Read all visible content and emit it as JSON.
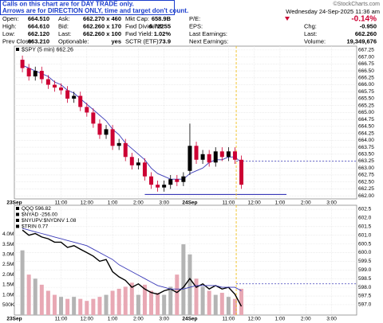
{
  "header": {
    "notice": [
      "Calls on this chart are for DAY TRADE only.",
      "Arrows are for DIRECTION ONLY, time and target don't count."
    ],
    "source": "©StockCharts.com",
    "datetime": "Wednesday 24-Sep-2025 11:36 am",
    "quote": [
      [
        [
          "Open:",
          "664.510"
        ],
        [
          "Ask:",
          "662.270 x 460"
        ],
        [
          "Mkt Cap:",
          "658.9B"
        ],
        [
          "P/E:"
        ],
        [
          "-0.14%"
        ]
      ],
      [
        [
          "High:",
          "664.610"
        ],
        [
          "Bid:",
          "662.260 x 170"
        ],
        [
          "Fwd Dividend:",
          "6.72255"
        ],
        [
          "EPS:"
        ],
        [
          "Chg:",
          "-0.950"
        ]
      ],
      [
        [
          "Low:",
          "662.120"
        ],
        [
          "Last:",
          "662.260 x 100"
        ],
        [
          "Fwd Yield:",
          "1.02%"
        ],
        [
          "Last Earnings:"
        ],
        [
          "Last:",
          "662.260"
        ]
      ],
      [
        [
          "Prev Close:",
          "663.210"
        ],
        [
          "Optionable:",
          "yes"
        ],
        [
          "SCTR (ETF):",
          "73.9"
        ],
        [
          "Next Earnings:"
        ],
        [
          "Volume:",
          "19,349,676"
        ]
      ]
    ]
  },
  "chart_data": [
    {
      "type": "candlestick",
      "legend": "$SPY (5 min) 662.26",
      "open": [
        666.9,
        666.6,
        666.3,
        666.5,
        666.2,
        666.0,
        665.9,
        665.8,
        665.5,
        665.6,
        665.2,
        665.0,
        664.6,
        664.2,
        664.4,
        663.8,
        663.9,
        663.4,
        663.1,
        663.2,
        662.7,
        662.4,
        662.3,
        662.4,
        662.6,
        662.5,
        662.9,
        663.8,
        663.3,
        663.5,
        663.2,
        663.6,
        663.4,
        663.6,
        663.3
      ],
      "high": [
        667.05,
        666.75,
        666.65,
        666.65,
        666.35,
        666.15,
        666.05,
        665.95,
        665.75,
        665.75,
        665.35,
        665.15,
        664.75,
        664.55,
        664.55,
        664.05,
        664.05,
        663.55,
        663.35,
        663.35,
        662.85,
        662.55,
        662.55,
        662.75,
        662.75,
        662.85,
        664.6,
        663.95,
        663.65,
        663.65,
        663.75,
        663.75,
        663.75,
        663.75,
        663.45
      ],
      "low": [
        666.45,
        666.15,
        666.15,
        666.05,
        665.85,
        665.75,
        665.65,
        665.35,
        665.35,
        665.05,
        664.85,
        664.45,
        664.05,
        664.05,
        663.65,
        663.65,
        663.25,
        662.95,
        662.95,
        662.55,
        662.25,
        662.15,
        662.15,
        662.25,
        662.35,
        662.35,
        662.75,
        663.15,
        663.15,
        663.05,
        663.05,
        663.25,
        663.25,
        663.15,
        662.25
      ],
      "close": [
        666.6,
        666.3,
        666.5,
        666.2,
        666.0,
        665.9,
        665.8,
        665.5,
        665.6,
        665.2,
        665.0,
        664.6,
        664.2,
        664.4,
        663.8,
        663.9,
        663.4,
        663.1,
        663.2,
        662.7,
        662.4,
        662.3,
        662.4,
        662.6,
        662.5,
        662.7,
        663.8,
        663.3,
        663.5,
        663.2,
        663.6,
        663.4,
        663.6,
        663.3,
        662.4
      ],
      "up_color": "#000000",
      "down_color": "#cc0033",
      "ma": {
        "color": "#3a3ab8",
        "values": [
          666.7,
          666.6,
          666.5,
          666.4,
          666.3,
          666.1,
          666.0,
          665.8,
          665.7,
          665.5,
          665.3,
          665.1,
          664.9,
          664.7,
          664.4,
          664.2,
          663.9,
          663.7,
          663.5,
          663.3,
          663.0,
          662.8,
          662.7,
          662.6,
          662.6,
          662.6,
          662.8,
          662.9,
          663.0,
          663.2,
          663.3,
          663.3,
          663.4,
          663.4,
          663.2
        ]
      },
      "hlines": [
        {
          "value": 663.25,
          "from": 33.2,
          "color": "#3a3ab8",
          "dash": true
        },
        {
          "value": 662.05,
          "from": 19,
          "to": 41,
          "color": "#3a3ab8",
          "dash": false
        }
      ],
      "vline": {
        "value": 33.2,
        "color": "#f0c020"
      },
      "xlim": [
        -1.25,
        51.9
      ],
      "xticks": [
        {
          "value": -1.25,
          "label": "23Sep"
        },
        {
          "value": 6,
          "label": "11:00"
        },
        {
          "value": 10,
          "label": "12:00"
        },
        {
          "value": 14,
          "label": "1:00"
        },
        {
          "value": 18,
          "label": "2:00"
        },
        {
          "value": 22,
          "label": "3:00"
        },
        {
          "value": 26,
          "label": "24Sep"
        },
        {
          "value": 32,
          "label": "11:00"
        },
        {
          "value": 36,
          "label": "12:00"
        },
        {
          "value": 40,
          "label": "1:00"
        },
        {
          "value": 44,
          "label": "2:00"
        },
        {
          "value": 48,
          "label": "3:00"
        }
      ],
      "ylim": [
        661.89,
        667.39
      ],
      "yticks": [
        667.25,
        {
          "value": 667,
          "label": "667.00"
        },
        666.75,
        {
          "value": 666.5,
          "label": "666.50"
        },
        666.25,
        {
          "value": 666,
          "label": "666.00"
        },
        665.75,
        {
          "value": 665.5,
          "label": "665.50"
        },
        665.25,
        {
          "value": 665,
          "label": "665.00"
        },
        664.75,
        {
          "value": 664.5,
          "label": "664.50"
        },
        664.25,
        {
          "value": 664,
          "label": "664.00"
        },
        663.75,
        {
          "value": 663.5,
          "label": "663.50"
        },
        663.25,
        {
          "value": 663,
          "label": "663.00"
        },
        662.75,
        {
          "value": 662.5,
          "label": "662.50"
        },
        662.25,
        {
          "value": 662,
          "label": "662.00"
        }
      ],
      "grid": true
    },
    {
      "type": "line_volume",
      "legend": [
        "QQQ 596.82",
        "$NYAD -256.00",
        "$NYUPV:$NYDNV 1.08",
        "$TRIN 0.77"
      ],
      "series": [
        {
          "color": "#000000",
          "values": [
            601.3,
            601.0,
            601.1,
            600.9,
            600.8,
            600.6,
            600.6,
            600.3,
            600.4,
            600.2,
            600.0,
            599.8,
            599.5,
            599.6,
            598.9,
            598.6,
            598.4,
            598.0,
            598.2,
            597.9,
            597.7,
            597.6,
            597.8,
            597.9,
            597.7,
            598.0,
            598.5,
            598.0,
            598.2,
            597.9,
            598.1,
            597.9,
            598.0,
            597.6,
            596.9
          ]
        },
        {
          "color": "#3a3ab8",
          "values": [
            601.4,
            601.3,
            601.2,
            601.1,
            601.0,
            600.9,
            600.8,
            600.7,
            600.6,
            600.5,
            600.4,
            600.2,
            600.0,
            599.8,
            599.6,
            599.3,
            599.1,
            598.9,
            598.7,
            598.5,
            598.3,
            598.1,
            598.0,
            597.9,
            597.9,
            597.9,
            598.0,
            598.1,
            598.1,
            598.1,
            598.1,
            598.0,
            598.0,
            598.0,
            597.8
          ]
        }
      ],
      "volume": {
        "axis": "y2",
        "up_color": "#b4b4b4",
        "down_color": "#e8a8b4",
        "values": [
          3200000,
          2000000,
          1800000,
          1500000,
          1200000,
          1000000,
          900000,
          800000,
          900000,
          800000,
          700000,
          800000,
          900000,
          1000000,
          1200000,
          1300000,
          1400000,
          1600000,
          1000000,
          1500000,
          1200000,
          1100000,
          1000000,
          1400000,
          2000000,
          3500000,
          3000000,
          1800000,
          1400000,
          1200000,
          1000000,
          1100000,
          900000,
          800000,
          1300000
        ]
      },
      "hlines": [
        {
          "value": 598.2,
          "from": 33.2,
          "color": "#3a3ab8",
          "dash": true
        }
      ],
      "vline": {
        "value": 33.2,
        "color": "#f0c020"
      },
      "xlim": [
        -1.25,
        51.9
      ],
      "xticks": [
        {
          "value": -1.25,
          "label": "23Sep"
        },
        {
          "value": 6,
          "label": "11:00"
        },
        {
          "value": 10,
          "label": "12:00"
        },
        {
          "value": 14,
          "label": "1:00"
        },
        {
          "value": 18,
          "label": "2:00"
        },
        {
          "value": 22,
          "label": "3:00"
        },
        {
          "value": 26,
          "label": "24Sep"
        },
        {
          "value": 32,
          "label": "11:00"
        },
        {
          "value": 36,
          "label": "12:00"
        },
        {
          "value": 40,
          "label": "1:00"
        },
        {
          "value": 44,
          "label": "2:00"
        },
        {
          "value": 48,
          "label": "3:00"
        }
      ],
      "ylim": [
        596.4,
        602.73
      ],
      "yticks": [
        602.5,
        {
          "value": 602,
          "label": "602.0"
        },
        601.5,
        {
          "value": 601,
          "label": "601.0"
        },
        600.5,
        {
          "value": 600,
          "label": "600.0"
        },
        599.5,
        {
          "value": 599,
          "label": "599.0"
        },
        598.5,
        {
          "value": 598,
          "label": "598.0"
        },
        597.5,
        {
          "value": 597,
          "label": "597.0"
        }
      ],
      "y2lim": [
        0,
        5430000
      ],
      "y2ticks": [
        {
          "value": 4000000,
          "label": "4.0M"
        },
        {
          "value": 3500000,
          "label": "3.5M"
        },
        {
          "value": 3000000,
          "label": "3.0M"
        },
        {
          "value": 2500000,
          "label": "2.5M"
        },
        {
          "value": 2000000,
          "label": "2.0M"
        },
        {
          "value": 1500000,
          "label": "1.5M"
        },
        {
          "value": 1000000,
          "label": "1.0M"
        },
        {
          "value": 500000,
          "label": "500K"
        }
      ],
      "grid": true
    }
  ]
}
